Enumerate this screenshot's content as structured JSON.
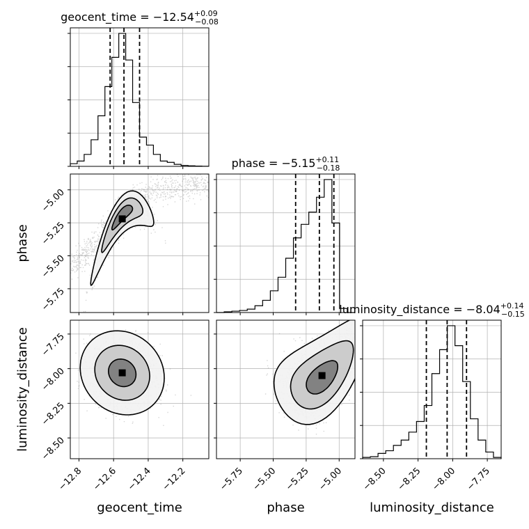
{
  "chart_data": {
    "type": "corner",
    "parameters": [
      {
        "name": "geocent_time",
        "axis_label": "geocent_time",
        "title_label": "geocent_time",
        "median": "−12.54",
        "upper": "+0.09",
        "lower": "−0.08",
        "range": [
          -12.85,
          -12.05
        ],
        "ticks": [
          -12.8,
          -12.6,
          -12.4,
          -12.2
        ],
        "tick_labels": [
          "−12.8",
          "−12.6",
          "−12.4",
          "−12.2"
        ],
        "quantiles": [
          -12.62,
          -12.54,
          -12.45
        ],
        "histogram": [
          0.02,
          0.04,
          0.09,
          0.2,
          0.38,
          0.6,
          0.82,
          1.0,
          0.8,
          0.48,
          0.22,
          0.16,
          0.09,
          0.04,
          0.03,
          0.015,
          0.007,
          0.004,
          0.002,
          0.001
        ]
      },
      {
        "name": "phase",
        "axis_label": "phase",
        "title_label": "phase",
        "median": "−5.15",
        "upper": "+0.11",
        "lower": "−0.18",
        "range": [
          -5.93,
          -4.88
        ],
        "ticks": [
          -5.75,
          -5.5,
          -5.25,
          -5.0
        ],
        "tick_labels": [
          "−5.75",
          "−5.50",
          "−5.25",
          "−5.00"
        ],
        "quantiles": [
          -5.33,
          -5.15,
          -5.04
        ],
        "histogram": [
          0.0,
          0.005,
          0.01,
          0.015,
          0.025,
          0.05,
          0.09,
          0.16,
          0.26,
          0.4,
          0.55,
          0.65,
          0.74,
          0.85,
          0.98,
          0.66,
          0.03,
          0.0
        ]
      },
      {
        "name": "luminosity_distance",
        "axis_label": "luminosity_distance",
        "title_label": "luminosity_distance",
        "median": "−8.04",
        "upper": "+0.14",
        "lower": "−0.15",
        "range": [
          -8.65,
          -7.65
        ],
        "ticks": [
          -8.5,
          -8.25,
          -8.0,
          -7.75
        ],
        "tick_labels": [
          "−8.50",
          "−8.25",
          "−8.00",
          "−7.75"
        ],
        "quantiles": [
          -8.19,
          -8.04,
          -7.9
        ],
        "histogram": [
          0.01,
          0.015,
          0.04,
          0.06,
          0.1,
          0.14,
          0.2,
          0.28,
          0.4,
          0.64,
          0.82,
          1.0,
          0.85,
          0.58,
          0.3,
          0.14,
          0.05,
          0.01
        ]
      }
    ],
    "pairs": [
      {
        "x": "geocent_time",
        "y": "phase",
        "center": [
          -12.55,
          -5.22
        ],
        "sd": [
          0.06,
          0.09
        ],
        "corr": 0.85,
        "curve": 1.4,
        "scatter_trend": [
          [
            -12.85,
            -5.6
          ],
          [
            -12.7,
            -5.4
          ],
          [
            -12.55,
            -5.15
          ],
          [
            -12.4,
            -5.02
          ],
          [
            -12.2,
            -4.98
          ],
          [
            -12.05,
            -4.94
          ]
        ]
      },
      {
        "x": "geocent_time",
        "y": "luminosity_distance",
        "center": [
          -12.55,
          -8.03
        ],
        "sd": [
          0.08,
          0.1
        ],
        "corr": -0.12,
        "curve": 0,
        "scatter_trend": []
      },
      {
        "x": "phase",
        "y": "luminosity_distance",
        "center": [
          -5.13,
          -8.05
        ],
        "sd": [
          0.12,
          0.12
        ],
        "corr": 0.55,
        "curve": -0.6,
        "scatter_trend": []
      }
    ],
    "contour_levels": [
      0.39,
      0.86,
      0.99
    ],
    "grid": true,
    "colors": {
      "line": "#000000",
      "grid": "#b0b0b0",
      "points": "#888888",
      "axis": "#000000"
    }
  }
}
